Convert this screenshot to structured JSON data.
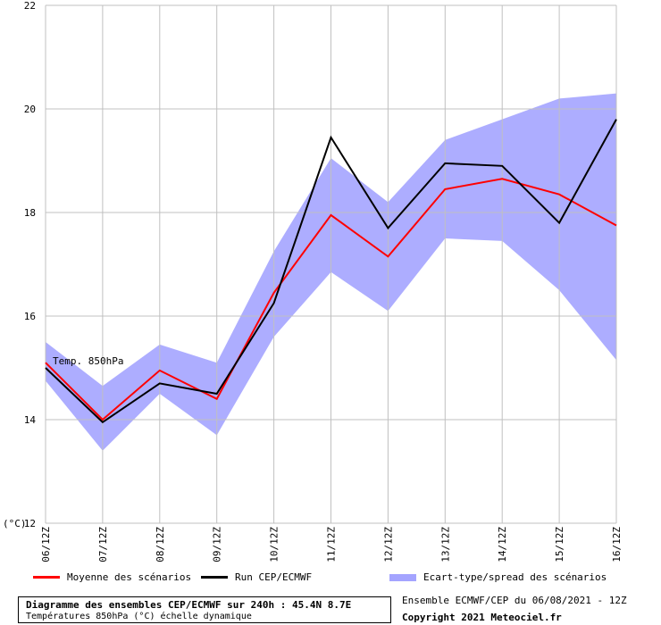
{
  "chart_data": {
    "type": "line",
    "categories": [
      "06/12Z",
      "07/12Z",
      "08/12Z",
      "09/12Z",
      "10/12Z",
      "11/12Z",
      "12/12Z",
      "13/12Z",
      "14/12Z",
      "15/12Z",
      "16/12Z"
    ],
    "ylabel": "(°C)",
    "ylim": [
      12,
      22
    ],
    "yticks": [
      12,
      14,
      16,
      18,
      20,
      22
    ],
    "grid": true,
    "series": [
      {
        "name": "Moyenne des scénarios",
        "color": "#ff0000",
        "values": [
          15.1,
          14.0,
          14.95,
          14.4,
          16.45,
          17.95,
          17.15,
          18.45,
          18.65,
          18.35,
          17.75
        ]
      },
      {
        "name": "Run CEP/ECMWF",
        "color": "#000000",
        "values": [
          15.0,
          13.95,
          14.7,
          14.5,
          16.25,
          19.45,
          17.7,
          18.95,
          18.9,
          17.8,
          19.8
        ]
      }
    ],
    "band": {
      "name": "Ecart-type/spread des scénarios",
      "color": "#a4a4ff",
      "upper": [
        15.5,
        14.65,
        15.45,
        15.1,
        17.25,
        19.05,
        18.2,
        19.4,
        19.8,
        20.2,
        20.3
      ],
      "lower": [
        14.75,
        13.4,
        14.5,
        13.7,
        15.6,
        16.85,
        16.1,
        17.5,
        17.45,
        16.5,
        15.15
      ]
    },
    "annotation": "Temp. 850hPa"
  },
  "footer": {
    "title": "Diagramme des ensembles CEP/ECMWF sur 240h : 45.4N 8.7E",
    "subtitle": "Températures 850hPa (°C) échelle dynamique",
    "run_info": "Ensemble ECMWF/CEP du 06/08/2021 - 12Z",
    "copyright": "Copyright 2021 Meteociel.fr"
  }
}
